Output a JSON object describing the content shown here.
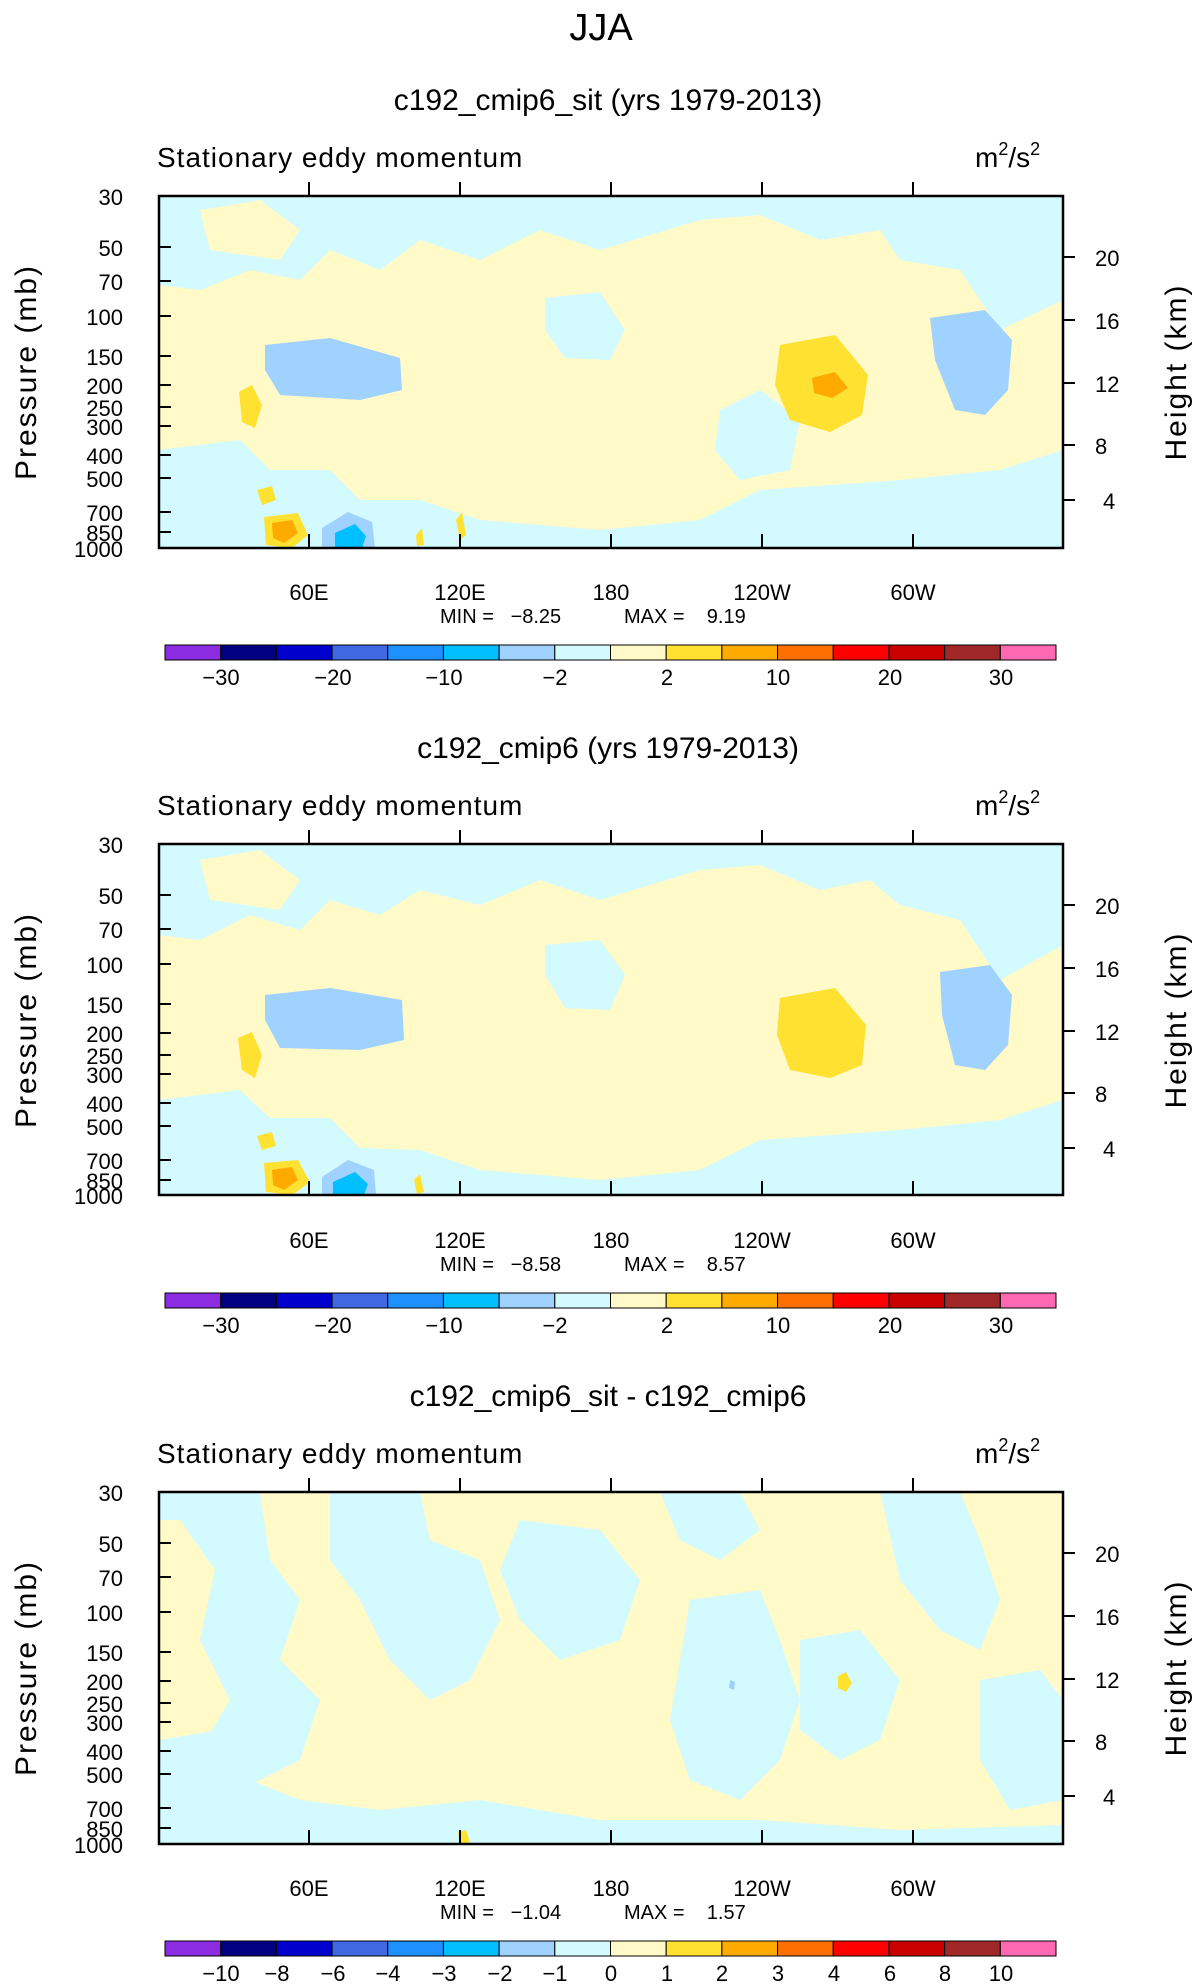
{
  "page_title": "JJA",
  "chart_data": [
    {
      "type": "heatmap",
      "title": "c192_cmip6_sit (yrs 1979-2013)",
      "subtitle_left": "Stationary eddy momentum",
      "units": "m²/s²",
      "ylabel_left": "Pressure (mb)",
      "ylabel_right": "Height (km)",
      "y_ticks_left": [
        "30",
        "50",
        "70",
        "100",
        "150",
        "200",
        "250",
        "300",
        "400",
        "500",
        "700",
        "850",
        "1000"
      ],
      "y_ticks_right": [
        "20",
        "16",
        "12",
        "8",
        "4"
      ],
      "x_ticks": [
        "60E",
        "120E",
        "180",
        "120W",
        "60W"
      ],
      "min_text": "MIN =   −8.25",
      "max_text": "MAX =    9.19",
      "colorbar_labels": [
        "−30",
        "−20",
        "−10",
        "−2",
        "2",
        "10",
        "20",
        "30"
      ]
    },
    {
      "type": "heatmap",
      "title": "c192_cmip6 (yrs 1979-2013)",
      "subtitle_left": "Stationary eddy momentum",
      "units": "m²/s²",
      "ylabel_left": "Pressure (mb)",
      "ylabel_right": "Height (km)",
      "y_ticks_left": [
        "30",
        "50",
        "70",
        "100",
        "150",
        "200",
        "250",
        "300",
        "400",
        "500",
        "700",
        "850",
        "1000"
      ],
      "y_ticks_right": [
        "20",
        "16",
        "12",
        "8",
        "4"
      ],
      "x_ticks": [
        "60E",
        "120E",
        "180",
        "120W",
        "60W"
      ],
      "min_text": "MIN =   −8.58",
      "max_text": "MAX =    8.57",
      "colorbar_labels": [
        "−30",
        "−20",
        "−10",
        "−2",
        "2",
        "10",
        "20",
        "30"
      ]
    },
    {
      "type": "heatmap",
      "title": "c192_cmip6_sit - c192_cmip6",
      "subtitle_left": "Stationary eddy momentum",
      "units": "m²/s²",
      "ylabel_left": "Pressure (mb)",
      "ylabel_right": "Height (km)",
      "y_ticks_left": [
        "30",
        "50",
        "70",
        "100",
        "150",
        "200",
        "250",
        "300",
        "400",
        "500",
        "700",
        "850",
        "1000"
      ],
      "y_ticks_right": [
        "20",
        "16",
        "12",
        "8",
        "4"
      ],
      "x_ticks": [
        "60E",
        "120E",
        "180",
        "120W",
        "60W"
      ],
      "min_text": "MIN =   −1.04",
      "max_text": "MAX =    1.57",
      "colorbar_labels": [
        "−10",
        "−8",
        "−6",
        "−4",
        "−3",
        "−2",
        "−1",
        "0",
        "1",
        "2",
        "3",
        "4",
        "6",
        "8",
        "10"
      ]
    }
  ],
  "colors": {
    "colorbar": [
      "#8b2be2",
      "#000080",
      "#0000cd",
      "#4169e1",
      "#1e90ff",
      "#00bfff",
      "#a0d2ff",
      "#d2faff",
      "#fffac8",
      "#ffe132",
      "#ffaa00",
      "#ff6e00",
      "#ff0000",
      "#c80000",
      "#a02828",
      "#ff69b4"
    ],
    "light_blue": "#d2faff",
    "mid_blue": "#a0d2ff",
    "blue": "#00bfff",
    "light_yellow": "#fffac8",
    "yellow": "#ffe132",
    "orange": "#ffaa00",
    "dark_orange": "#ff6e00"
  }
}
